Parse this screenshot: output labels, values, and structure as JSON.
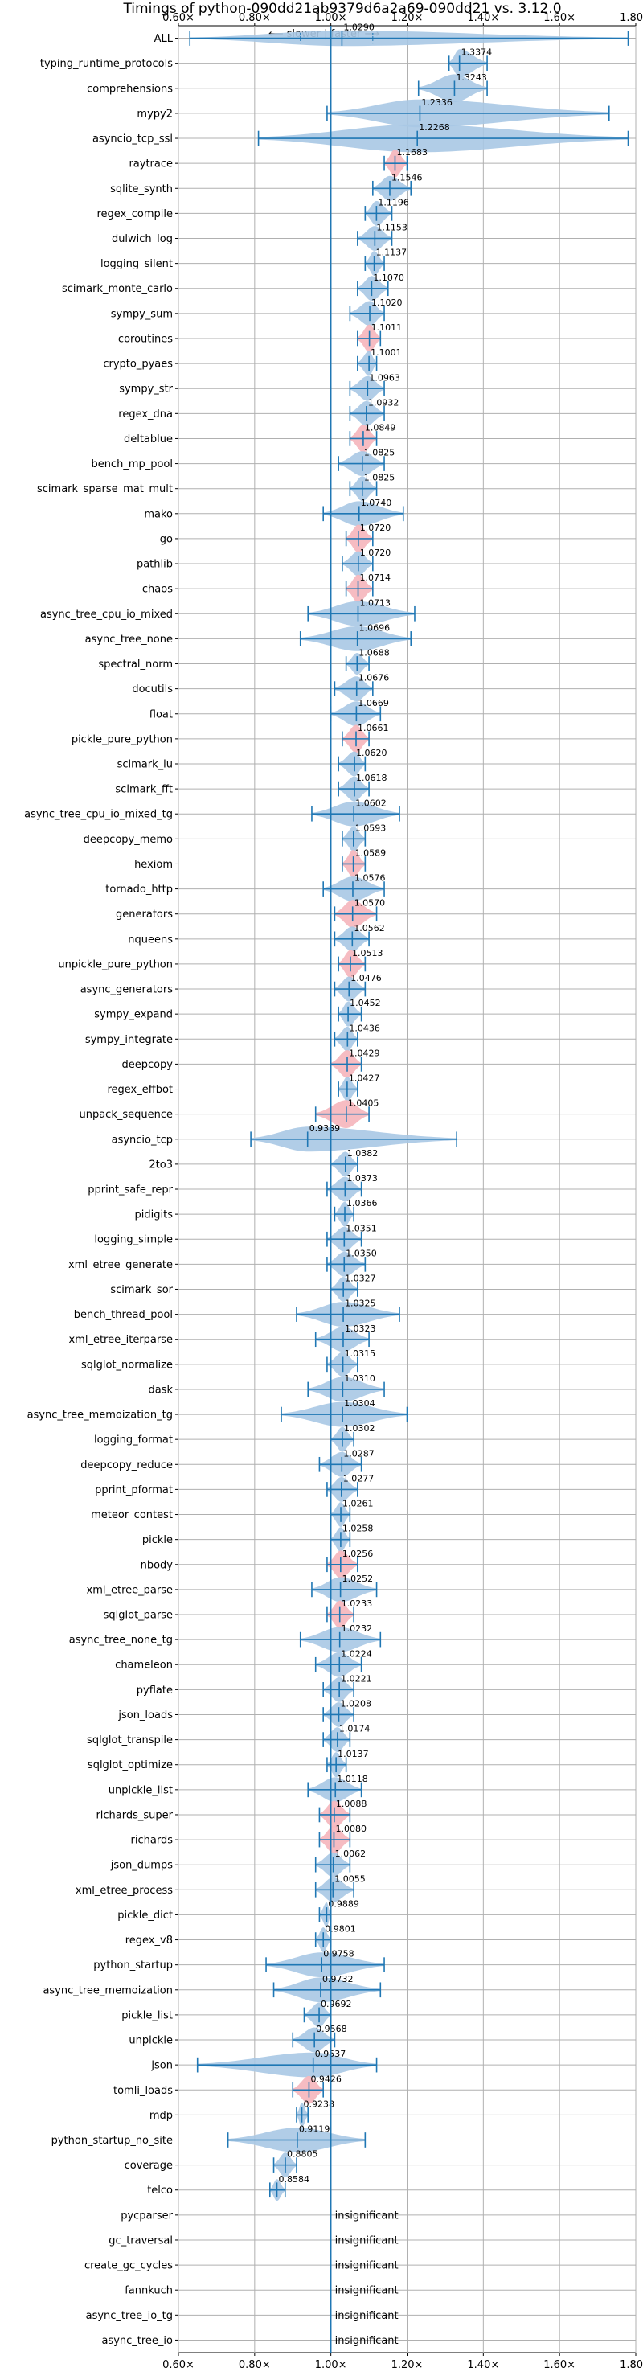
{
  "chart_data": {
    "type": "violin",
    "title": "Timings of python-090dd21ab9379d6a2a69-090dd21 vs. 3.12.0",
    "direction_label": "⟵ slower | faster ⟶",
    "xlim": [
      0.6,
      1.8
    ],
    "xticks": [
      0.6,
      0.8,
      1.0,
      1.2,
      1.4,
      1.6,
      1.8
    ],
    "xtick_labels": [
      "0.60×",
      "0.80×",
      "1.00×",
      "1.20×",
      "1.40×",
      "1.60×",
      "1.80×"
    ],
    "reference_line": 1.0,
    "grid": true,
    "insignificant_label": "insignificant",
    "colors": {
      "violin": "#a9c8e4",
      "highlight": "#f5b8bf",
      "axis_line": "#1f77b4"
    },
    "rows": [
      {
        "name": "ALL",
        "median": 1.029,
        "lo": 0.63,
        "hi": 1.78,
        "w": 0.5,
        "label": "1.0290",
        "q1": 0.92,
        "q3": 1.11
      },
      {
        "name": "typing_runtime_protocols",
        "median": 1.3374,
        "lo": 1.31,
        "hi": 1.41,
        "w": 0.9,
        "label": "1.3374"
      },
      {
        "name": "comprehensions",
        "median": 1.3243,
        "lo": 1.23,
        "hi": 1.41,
        "w": 0.9,
        "label": "1.3243"
      },
      {
        "name": "mypy2",
        "median": 1.2336,
        "lo": 0.99,
        "hi": 1.73,
        "w": 0.9,
        "label": "1.2336"
      },
      {
        "name": "asyncio_tcp_ssl",
        "median": 1.2268,
        "lo": 0.81,
        "hi": 1.78,
        "w": 0.9,
        "label": "1.2268"
      },
      {
        "name": "raytrace",
        "median": 1.1683,
        "lo": 1.14,
        "hi": 1.2,
        "w": 0.9,
        "label": "1.1683",
        "highlight": true
      },
      {
        "name": "sqlite_synth",
        "median": 1.1546,
        "lo": 1.11,
        "hi": 1.21,
        "w": 0.8,
        "label": "1.1546"
      },
      {
        "name": "regex_compile",
        "median": 1.1196,
        "lo": 1.09,
        "hi": 1.16,
        "w": 0.8,
        "label": "1.1196"
      },
      {
        "name": "dulwich_log",
        "median": 1.1153,
        "lo": 1.07,
        "hi": 1.16,
        "w": 0.8,
        "label": "1.1153"
      },
      {
        "name": "logging_silent",
        "median": 1.1137,
        "lo": 1.09,
        "hi": 1.14,
        "w": 0.8,
        "label": "1.1137"
      },
      {
        "name": "scimark_monte_carlo",
        "median": 1.107,
        "lo": 1.07,
        "hi": 1.15,
        "w": 0.8,
        "label": "1.1070"
      },
      {
        "name": "sympy_sum",
        "median": 1.102,
        "lo": 1.05,
        "hi": 1.14,
        "w": 0.8,
        "label": "1.1020"
      },
      {
        "name": "coroutines",
        "median": 1.1011,
        "lo": 1.07,
        "hi": 1.13,
        "w": 0.9,
        "label": "1.1011",
        "highlight": true
      },
      {
        "name": "crypto_pyaes",
        "median": 1.1001,
        "lo": 1.07,
        "hi": 1.12,
        "w": 0.8,
        "label": "1.1001"
      },
      {
        "name": "sympy_str",
        "median": 1.0963,
        "lo": 1.05,
        "hi": 1.14,
        "w": 0.8,
        "label": "1.0963"
      },
      {
        "name": "regex_dna",
        "median": 1.0932,
        "lo": 1.05,
        "hi": 1.14,
        "w": 0.8,
        "label": "1.0932"
      },
      {
        "name": "deltablue",
        "median": 1.0849,
        "lo": 1.05,
        "hi": 1.12,
        "w": 0.9,
        "label": "1.0849",
        "highlight": true
      },
      {
        "name": "bench_mp_pool",
        "median": 1.0825,
        "lo": 1.02,
        "hi": 1.14,
        "w": 0.8,
        "label": "1.0825"
      },
      {
        "name": "scimark_sparse_mat_mult",
        "median": 1.0825,
        "lo": 1.05,
        "hi": 1.12,
        "w": 0.8,
        "label": "1.0825"
      },
      {
        "name": "mako",
        "median": 1.074,
        "lo": 0.98,
        "hi": 1.19,
        "w": 0.8,
        "label": "1.0740"
      },
      {
        "name": "go",
        "median": 1.072,
        "lo": 1.04,
        "hi": 1.11,
        "w": 0.9,
        "label": "1.0720",
        "highlight": true
      },
      {
        "name": "pathlib",
        "median": 1.072,
        "lo": 1.03,
        "hi": 1.11,
        "w": 0.8,
        "label": "1.0720"
      },
      {
        "name": "chaos",
        "median": 1.0714,
        "lo": 1.04,
        "hi": 1.11,
        "w": 0.9,
        "label": "1.0714",
        "highlight": true
      },
      {
        "name": "async_tree_cpu_io_mixed",
        "median": 1.0713,
        "lo": 0.94,
        "hi": 1.22,
        "w": 0.8,
        "label": "1.0713"
      },
      {
        "name": "async_tree_none",
        "median": 1.0696,
        "lo": 0.92,
        "hi": 1.21,
        "w": 0.8,
        "label": "1.0696"
      },
      {
        "name": "spectral_norm",
        "median": 1.0688,
        "lo": 1.04,
        "hi": 1.1,
        "w": 0.7,
        "label": "1.0688"
      },
      {
        "name": "docutils",
        "median": 1.0676,
        "lo": 1.01,
        "hi": 1.11,
        "w": 0.8,
        "label": "1.0676"
      },
      {
        "name": "float",
        "median": 1.0669,
        "lo": 1.0,
        "hi": 1.13,
        "w": 0.8,
        "label": "1.0669"
      },
      {
        "name": "pickle_pure_python",
        "median": 1.0661,
        "lo": 1.03,
        "hi": 1.1,
        "w": 0.9,
        "label": "1.0661",
        "highlight": true
      },
      {
        "name": "scimark_lu",
        "median": 1.062,
        "lo": 1.02,
        "hi": 1.09,
        "w": 0.8,
        "label": "1.0620"
      },
      {
        "name": "scimark_fft",
        "median": 1.0618,
        "lo": 1.02,
        "hi": 1.1,
        "w": 0.8,
        "label": "1.0618"
      },
      {
        "name": "async_tree_cpu_io_mixed_tg",
        "median": 1.0602,
        "lo": 0.95,
        "hi": 1.18,
        "w": 0.8,
        "label": "1.0602"
      },
      {
        "name": "deepcopy_memo",
        "median": 1.0593,
        "lo": 1.03,
        "hi": 1.09,
        "w": 0.8,
        "label": "1.0593"
      },
      {
        "name": "hexiom",
        "median": 1.0589,
        "lo": 1.03,
        "hi": 1.09,
        "w": 0.9,
        "label": "1.0589",
        "highlight": true
      },
      {
        "name": "tornado_http",
        "median": 1.0576,
        "lo": 0.98,
        "hi": 1.14,
        "w": 0.8,
        "label": "1.0576"
      },
      {
        "name": "generators",
        "median": 1.057,
        "lo": 1.01,
        "hi": 1.12,
        "w": 0.9,
        "label": "1.0570",
        "highlight": true
      },
      {
        "name": "nqueens",
        "median": 1.0562,
        "lo": 1.01,
        "hi": 1.1,
        "w": 0.8,
        "label": "1.0562"
      },
      {
        "name": "unpickle_pure_python",
        "median": 1.0513,
        "lo": 1.02,
        "hi": 1.09,
        "w": 0.9,
        "label": "1.0513",
        "highlight": true
      },
      {
        "name": "async_generators",
        "median": 1.0476,
        "lo": 1.01,
        "hi": 1.09,
        "w": 0.8,
        "label": "1.0476"
      },
      {
        "name": "sympy_expand",
        "median": 1.0452,
        "lo": 1.02,
        "hi": 1.08,
        "w": 0.8,
        "label": "1.0452"
      },
      {
        "name": "sympy_integrate",
        "median": 1.0436,
        "lo": 1.01,
        "hi": 1.07,
        "w": 0.8,
        "label": "1.0436"
      },
      {
        "name": "deepcopy",
        "median": 1.0429,
        "lo": 1.0,
        "hi": 1.08,
        "w": 0.9,
        "label": "1.0429",
        "highlight": true
      },
      {
        "name": "regex_effbot",
        "median": 1.0427,
        "lo": 1.02,
        "hi": 1.07,
        "w": 0.8,
        "label": "1.0427"
      },
      {
        "name": "unpack_sequence",
        "median": 1.0405,
        "lo": 0.96,
        "hi": 1.1,
        "w": 0.9,
        "label": "1.0405",
        "highlight": true
      },
      {
        "name": "asyncio_tcp",
        "median": 0.9389,
        "lo": 0.79,
        "hi": 1.33,
        "w": 0.8,
        "label": "0.9389"
      },
      {
        "name": "2to3",
        "median": 1.0382,
        "lo": 1.0,
        "hi": 1.07,
        "w": 0.8,
        "label": "1.0382"
      },
      {
        "name": "pprint_safe_repr",
        "median": 1.0373,
        "lo": 0.99,
        "hi": 1.08,
        "w": 0.8,
        "label": "1.0373"
      },
      {
        "name": "pidigits",
        "median": 1.0366,
        "lo": 1.01,
        "hi": 1.06,
        "w": 0.8,
        "label": "1.0366"
      },
      {
        "name": "logging_simple",
        "median": 1.0351,
        "lo": 0.99,
        "hi": 1.08,
        "w": 0.8,
        "label": "1.0351"
      },
      {
        "name": "xml_etree_generate",
        "median": 1.035,
        "lo": 0.99,
        "hi": 1.09,
        "w": 0.8,
        "label": "1.0350"
      },
      {
        "name": "scimark_sor",
        "median": 1.0327,
        "lo": 1.0,
        "hi": 1.07,
        "w": 0.8,
        "label": "1.0327"
      },
      {
        "name": "bench_thread_pool",
        "median": 1.0325,
        "lo": 0.91,
        "hi": 1.18,
        "w": 0.8,
        "label": "1.0325"
      },
      {
        "name": "xml_etree_iterparse",
        "median": 1.0323,
        "lo": 0.96,
        "hi": 1.1,
        "w": 0.8,
        "label": "1.0323"
      },
      {
        "name": "sqlglot_normalize",
        "median": 1.0315,
        "lo": 0.99,
        "hi": 1.07,
        "w": 0.8,
        "label": "1.0315"
      },
      {
        "name": "dask",
        "median": 1.031,
        "lo": 0.94,
        "hi": 1.14,
        "w": 0.8,
        "label": "1.0310"
      },
      {
        "name": "async_tree_memoization_tg",
        "median": 1.0304,
        "lo": 0.87,
        "hi": 1.2,
        "w": 0.8,
        "label": "1.0304"
      },
      {
        "name": "logging_format",
        "median": 1.0302,
        "lo": 1.0,
        "hi": 1.06,
        "w": 0.8,
        "label": "1.0302"
      },
      {
        "name": "deepcopy_reduce",
        "median": 1.0287,
        "lo": 0.97,
        "hi": 1.08,
        "w": 0.8,
        "label": "1.0287"
      },
      {
        "name": "pprint_pformat",
        "median": 1.0277,
        "lo": 0.99,
        "hi": 1.07,
        "w": 0.8,
        "label": "1.0277"
      },
      {
        "name": "meteor_contest",
        "median": 1.0261,
        "lo": 1.0,
        "hi": 1.05,
        "w": 0.8,
        "label": "1.0261"
      },
      {
        "name": "pickle",
        "median": 1.0258,
        "lo": 1.0,
        "hi": 1.05,
        "w": 0.8,
        "label": "1.0258"
      },
      {
        "name": "nbody",
        "median": 1.0256,
        "lo": 0.99,
        "hi": 1.07,
        "w": 0.9,
        "label": "1.0256",
        "highlight": true
      },
      {
        "name": "xml_etree_parse",
        "median": 1.0252,
        "lo": 0.95,
        "hi": 1.12,
        "w": 0.8,
        "label": "1.0252"
      },
      {
        "name": "sqlglot_parse",
        "median": 1.0233,
        "lo": 0.99,
        "hi": 1.06,
        "w": 0.9,
        "label": "1.0233",
        "highlight": true
      },
      {
        "name": "async_tree_none_tg",
        "median": 1.0232,
        "lo": 0.92,
        "hi": 1.13,
        "w": 0.8,
        "label": "1.0232"
      },
      {
        "name": "chameleon",
        "median": 1.0224,
        "lo": 0.96,
        "hi": 1.08,
        "w": 0.8,
        "label": "1.0224"
      },
      {
        "name": "pyflate",
        "median": 1.0221,
        "lo": 0.98,
        "hi": 1.06,
        "w": 0.8,
        "label": "1.0221"
      },
      {
        "name": "json_loads",
        "median": 1.0208,
        "lo": 0.98,
        "hi": 1.06,
        "w": 0.8,
        "label": "1.0208"
      },
      {
        "name": "sqlglot_transpile",
        "median": 1.0174,
        "lo": 0.98,
        "hi": 1.05,
        "w": 0.8,
        "label": "1.0174"
      },
      {
        "name": "sqlglot_optimize",
        "median": 1.0137,
        "lo": 0.99,
        "hi": 1.04,
        "w": 0.8,
        "label": "1.0137"
      },
      {
        "name": "unpickle_list",
        "median": 1.0118,
        "lo": 0.94,
        "hi": 1.08,
        "w": 0.8,
        "label": "1.0118"
      },
      {
        "name": "richards_super",
        "median": 1.0088,
        "lo": 0.97,
        "hi": 1.05,
        "w": 0.9,
        "label": "1.0088",
        "highlight": true
      },
      {
        "name": "richards",
        "median": 1.008,
        "lo": 0.97,
        "hi": 1.05,
        "w": 0.9,
        "label": "1.0080",
        "highlight": true
      },
      {
        "name": "json_dumps",
        "median": 1.0062,
        "lo": 0.96,
        "hi": 1.05,
        "w": 0.8,
        "label": "1.0062"
      },
      {
        "name": "xml_etree_process",
        "median": 1.0055,
        "lo": 0.96,
        "hi": 1.06,
        "w": 0.8,
        "label": "1.0055"
      },
      {
        "name": "pickle_dict",
        "median": 0.9889,
        "lo": 0.97,
        "hi": 1.0,
        "w": 0.8,
        "label": "0.9889"
      },
      {
        "name": "regex_v8",
        "median": 0.9801,
        "lo": 0.96,
        "hi": 1.0,
        "w": 0.8,
        "label": "0.9801"
      },
      {
        "name": "python_startup",
        "median": 0.9758,
        "lo": 0.83,
        "hi": 1.14,
        "w": 0.8,
        "label": "0.9758"
      },
      {
        "name": "async_tree_memoization",
        "median": 0.9732,
        "lo": 0.85,
        "hi": 1.13,
        "w": 0.8,
        "label": "0.9732"
      },
      {
        "name": "pickle_list",
        "median": 0.9692,
        "lo": 0.93,
        "hi": 1.0,
        "w": 0.8,
        "label": "0.9692"
      },
      {
        "name": "unpickle",
        "median": 0.9568,
        "lo": 0.9,
        "hi": 1.01,
        "w": 0.8,
        "label": "0.9568"
      },
      {
        "name": "json",
        "median": 0.9537,
        "lo": 0.65,
        "hi": 1.12,
        "w": 0.8,
        "label": "0.9537"
      },
      {
        "name": "tomli_loads",
        "median": 0.9426,
        "lo": 0.9,
        "hi": 0.98,
        "w": 0.9,
        "label": "0.9426",
        "highlight": true
      },
      {
        "name": "mdp",
        "median": 0.9238,
        "lo": 0.91,
        "hi": 0.94,
        "w": 0.8,
        "label": "0.9238"
      },
      {
        "name": "python_startup_no_site",
        "median": 0.9119,
        "lo": 0.73,
        "hi": 1.09,
        "w": 0.8,
        "label": "0.9119"
      },
      {
        "name": "coverage",
        "median": 0.8805,
        "lo": 0.85,
        "hi": 0.91,
        "w": 0.8,
        "label": "0.8805"
      },
      {
        "name": "telco",
        "median": 0.8584,
        "lo": 0.84,
        "hi": 0.88,
        "w": 0.7,
        "label": "0.8584"
      },
      {
        "name": "pycparser",
        "insignificant": true
      },
      {
        "name": "gc_traversal",
        "insignificant": true
      },
      {
        "name": "create_gc_cycles",
        "insignificant": true
      },
      {
        "name": "fannkuch",
        "insignificant": true
      },
      {
        "name": "async_tree_io_tg",
        "insignificant": true
      },
      {
        "name": "async_tree_io",
        "insignificant": true
      }
    ]
  }
}
